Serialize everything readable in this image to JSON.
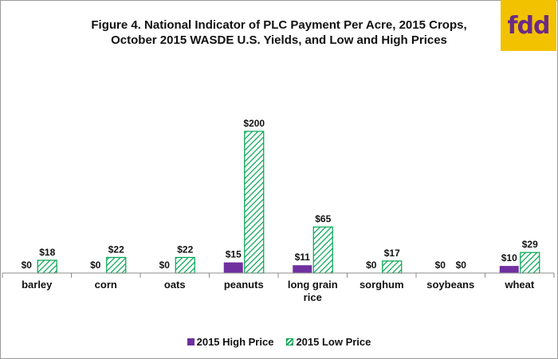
{
  "logo": {
    "text": "fdd"
  },
  "colors": {
    "high": "#7030a0",
    "low": "#00a550",
    "logo_bg": "#f2c200",
    "logo_text": "#6b2a86"
  },
  "chart_data": {
    "type": "bar",
    "title_lines": [
      "Figure 4.  National Indicator of PLC Payment Per Acre, 2015 Crops,",
      "October 2015 WASDE U.S. Yields,  and Low and High Prices"
    ],
    "categories": [
      [
        "barley"
      ],
      [
        "corn"
      ],
      [
        "oats"
      ],
      [
        "peanuts"
      ],
      [
        "long grain",
        "rice"
      ],
      [
        "sorghum"
      ],
      [
        "soybeans"
      ],
      [
        "wheat"
      ]
    ],
    "series": [
      {
        "name": "2015 High Price",
        "values": [
          0,
          0,
          0,
          15,
          11,
          0,
          0,
          10
        ],
        "labels": [
          "$0",
          "$0",
          "$0",
          "$15",
          "$11",
          "$0",
          "$0",
          "$10"
        ],
        "style": "solid"
      },
      {
        "name": "2015 Low Price",
        "values": [
          18,
          22,
          22,
          200,
          65,
          17,
          0,
          29
        ],
        "labels": [
          "$18",
          "$22",
          "$22",
          "$200",
          "$65",
          "$17",
          "$0",
          "$29"
        ],
        "style": "hatched"
      }
    ],
    "ylim": [
      0,
      200
    ],
    "xlabel": "",
    "ylabel": "",
    "grid": false,
    "legend": "bottom"
  }
}
